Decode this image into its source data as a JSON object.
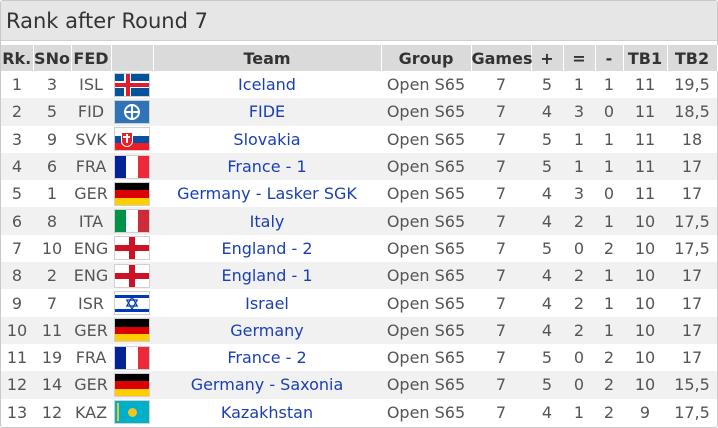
{
  "title": "Rank after Round 7",
  "columns": [
    "Rk.",
    "SNo",
    "FED",
    "",
    "Team",
    "Group",
    "Games",
    "+",
    "=",
    "-",
    "TB1",
    "TB2"
  ],
  "rows": [
    {
      "rk": "1",
      "sno": "3",
      "fed": "ISL",
      "flag": "iceland-flag-icon",
      "team": "Iceland",
      "group": "Open S65",
      "games": "7",
      "w": "5",
      "d": "1",
      "l": "1",
      "tb1": "11",
      "tb2": "19,5"
    },
    {
      "rk": "2",
      "sno": "5",
      "fed": "FID",
      "flag": "fide-flag-icon",
      "team": "FIDE",
      "group": "Open S65",
      "games": "7",
      "w": "4",
      "d": "3",
      "l": "0",
      "tb1": "11",
      "tb2": "18,5"
    },
    {
      "rk": "3",
      "sno": "9",
      "fed": "SVK",
      "flag": "slovakia-flag-icon",
      "team": "Slovakia",
      "group": "Open S65",
      "games": "7",
      "w": "5",
      "d": "1",
      "l": "1",
      "tb1": "11",
      "tb2": "18"
    },
    {
      "rk": "4",
      "sno": "6",
      "fed": "FRA",
      "flag": "france-flag-icon",
      "team": "France - 1",
      "group": "Open S65",
      "games": "7",
      "w": "5",
      "d": "1",
      "l": "1",
      "tb1": "11",
      "tb2": "17"
    },
    {
      "rk": "5",
      "sno": "1",
      "fed": "GER",
      "flag": "germany-flag-icon",
      "team": "Germany - Lasker SGK",
      "group": "Open S65",
      "games": "7",
      "w": "4",
      "d": "3",
      "l": "0",
      "tb1": "11",
      "tb2": "17"
    },
    {
      "rk": "6",
      "sno": "8",
      "fed": "ITA",
      "flag": "italy-flag-icon",
      "team": "Italy",
      "group": "Open S65",
      "games": "7",
      "w": "4",
      "d": "2",
      "l": "1",
      "tb1": "10",
      "tb2": "17,5"
    },
    {
      "rk": "7",
      "sno": "10",
      "fed": "ENG",
      "flag": "england-flag-icon",
      "team": "England - 2",
      "group": "Open S65",
      "games": "7",
      "w": "5",
      "d": "0",
      "l": "2",
      "tb1": "10",
      "tb2": "17,5"
    },
    {
      "rk": "8",
      "sno": "2",
      "fed": "ENG",
      "flag": "england-flag-icon",
      "team": "England - 1",
      "group": "Open S65",
      "games": "7",
      "w": "4",
      "d": "2",
      "l": "1",
      "tb1": "10",
      "tb2": "17"
    },
    {
      "rk": "9",
      "sno": "7",
      "fed": "ISR",
      "flag": "israel-flag-icon",
      "team": "Israel",
      "group": "Open S65",
      "games": "7",
      "w": "4",
      "d": "2",
      "l": "1",
      "tb1": "10",
      "tb2": "17"
    },
    {
      "rk": "10",
      "sno": "11",
      "fed": "GER",
      "flag": "germany-flag-icon",
      "team": "Germany",
      "group": "Open S65",
      "games": "7",
      "w": "4",
      "d": "2",
      "l": "1",
      "tb1": "10",
      "tb2": "17"
    },
    {
      "rk": "11",
      "sno": "19",
      "fed": "FRA",
      "flag": "france-flag-icon",
      "team": "France - 2",
      "group": "Open S65",
      "games": "7",
      "w": "5",
      "d": "0",
      "l": "2",
      "tb1": "10",
      "tb2": "17"
    },
    {
      "rk": "12",
      "sno": "14",
      "fed": "GER",
      "flag": "germany-flag-icon",
      "team": "Germany - Saxonia",
      "group": "Open S65",
      "games": "7",
      "w": "5",
      "d": "0",
      "l": "2",
      "tb1": "10",
      "tb2": "15,5"
    },
    {
      "rk": "13",
      "sno": "12",
      "fed": "KAZ",
      "flag": "kazakhstan-flag-icon",
      "team": "Kazakhstan",
      "group": "Open S65",
      "games": "7",
      "w": "4",
      "d": "1",
      "l": "2",
      "tb1": "9",
      "tb2": "17,5"
    }
  ],
  "colors": {
    "header_bg": "#dadada",
    "title_bg": "#e6e6e6",
    "team_link": "#1a3fb5",
    "row_alt": "#f1f1f1"
  }
}
